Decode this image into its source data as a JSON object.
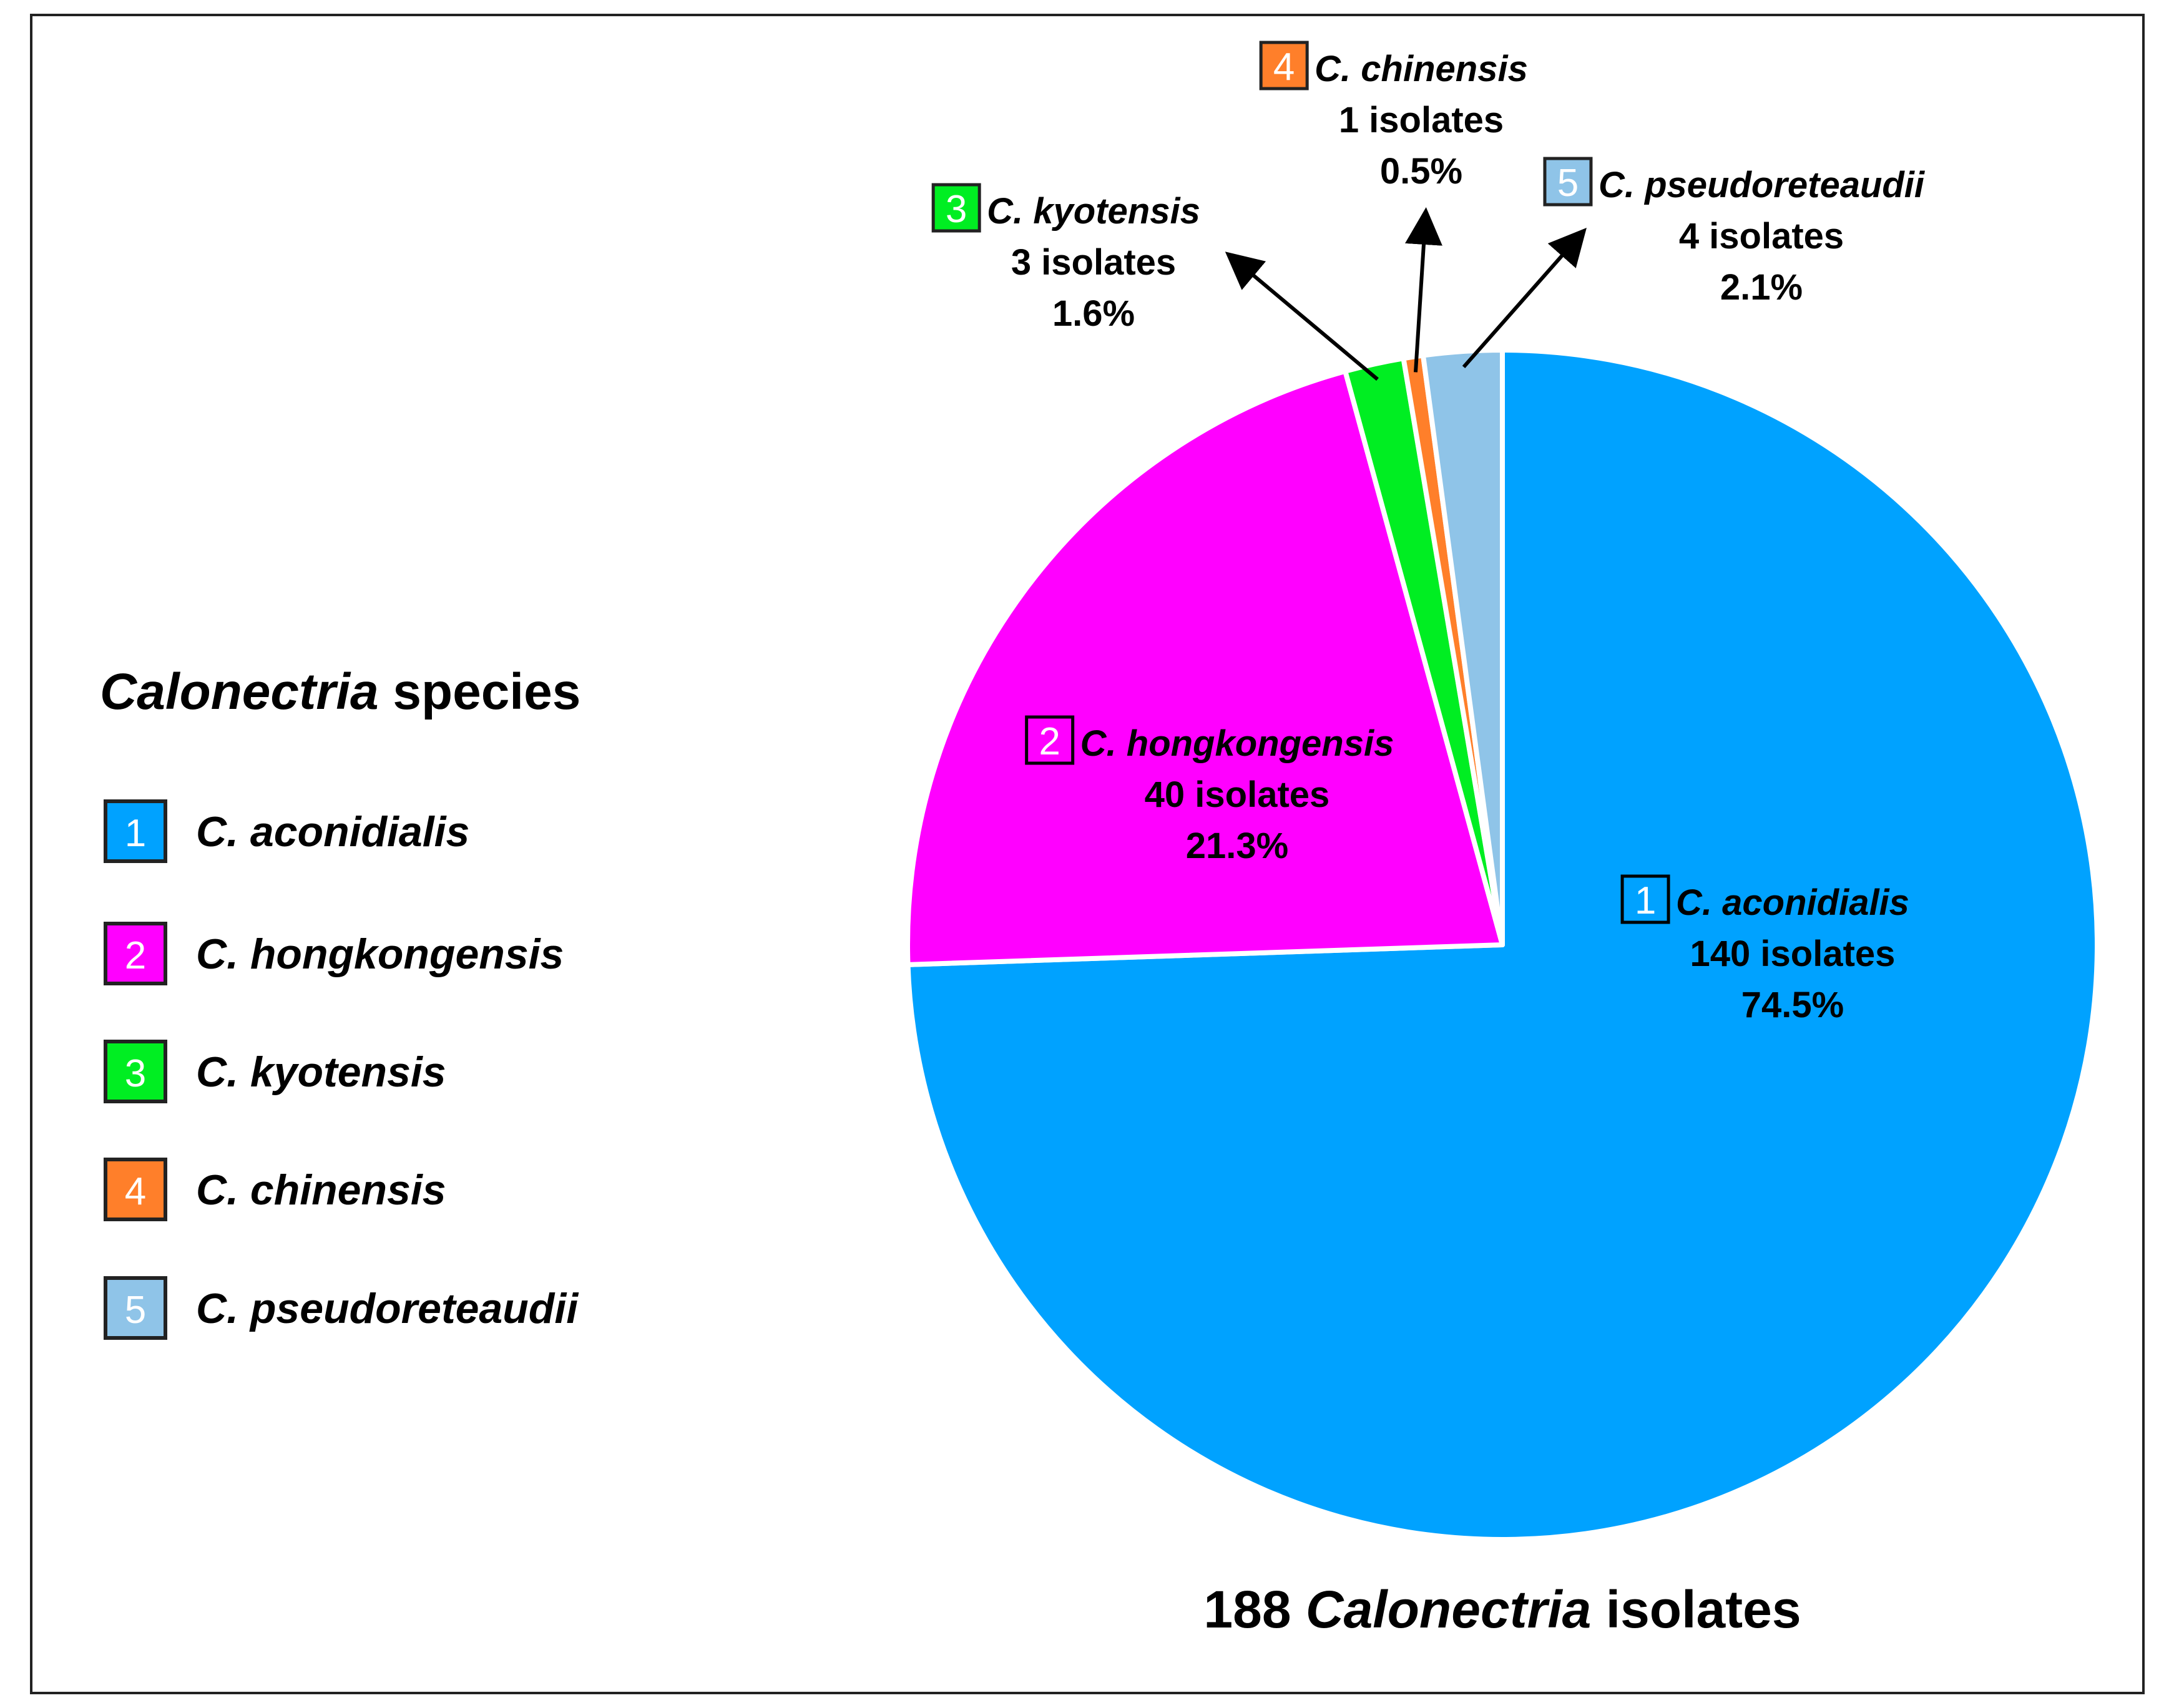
{
  "chart_data": {
    "type": "pie",
    "title": "",
    "total_label": {
      "prefix": "188",
      "genus": "Calonectria",
      "suffix": "isolates"
    },
    "legend": {
      "title_genus": "Calonectria",
      "title_suffix": "species",
      "placement": "left"
    },
    "slices": [
      {
        "index": "1",
        "name": "C. aconidialis",
        "count": 140,
        "count_label": "140 isolates",
        "percent": 74.5,
        "percent_label": "74.5%",
        "color": "#00a2ff"
      },
      {
        "index": "2",
        "name": "C. hongkongensis",
        "count": 40,
        "count_label": "40 isolates",
        "percent": 21.3,
        "percent_label": "21.3%",
        "color": "#ff00ff"
      },
      {
        "index": "3",
        "name": "C. kyotensis",
        "count": 3,
        "count_label": "3 isolates",
        "percent": 1.6,
        "percent_label": "1.6%",
        "color": "#00ee22"
      },
      {
        "index": "4",
        "name": "C. chinensis",
        "count": 1,
        "count_label": "1 isolates",
        "percent": 0.5,
        "percent_label": "0.5%",
        "color": "#ff7f2a"
      },
      {
        "index": "5",
        "name": "C. pseudoreteaudii",
        "count": 4,
        "count_label": "4 isolates",
        "percent": 2.1,
        "percent_label": "2.1%",
        "color": "#8fc4e8"
      }
    ]
  }
}
